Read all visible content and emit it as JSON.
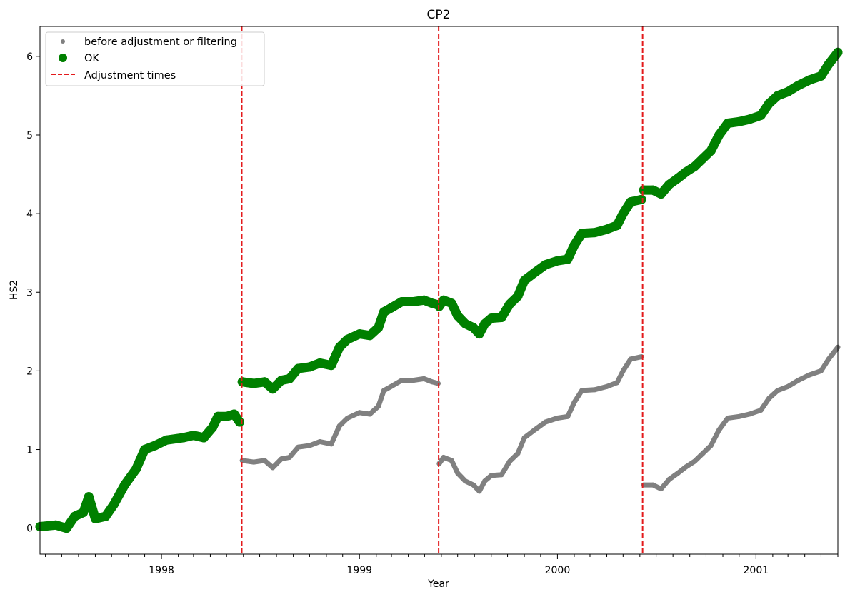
{
  "chart_data": {
    "type": "scatter",
    "title": "CP2",
    "xlabel": "Year",
    "ylabel": "HS2",
    "xlim": [
      "1997-05-22",
      "2001-06-01"
    ],
    "ylim": [
      -0.33,
      6.38
    ],
    "x_ticks": [
      "1998",
      "1999",
      "2000",
      "2001"
    ],
    "y_ticks": [
      "0",
      "1",
      "2",
      "3",
      "4",
      "5",
      "6"
    ],
    "grid": false,
    "legend": {
      "placement": "top-left",
      "entries": [
        "before adjustment or filtering",
        "OK",
        "Adjustment times"
      ]
    },
    "adjustment_times": [
      "1998-05-29",
      "1999-05-27",
      "2000-06-06"
    ],
    "series": [
      {
        "name": "before adjustment or filtering",
        "color": "#808080",
        "points": [
          [
            "1997-05-22",
            0.02
          ],
          [
            "1997-06-20",
            0.04
          ],
          [
            "1997-07-10",
            0.0
          ],
          [
            "1997-07-25",
            0.15
          ],
          [
            "1997-08-10",
            0.2
          ],
          [
            "1997-08-20",
            0.4
          ],
          [
            "1997-09-01",
            0.12
          ],
          [
            "1997-09-20",
            0.15
          ],
          [
            "1997-10-05",
            0.3
          ],
          [
            "1997-10-25",
            0.55
          ],
          [
            "1997-11-15",
            0.75
          ],
          [
            "1997-12-01",
            1.0
          ],
          [
            "1997-12-20",
            1.05
          ],
          [
            "1998-01-10",
            1.12
          ],
          [
            "1998-02-10",
            1.15
          ],
          [
            "1998-03-01",
            1.18
          ],
          [
            "1998-03-20",
            1.15
          ],
          [
            "1998-04-05",
            1.28
          ],
          [
            "1998-04-15",
            1.42
          ],
          [
            "1998-05-01",
            1.42
          ],
          [
            "1998-05-15",
            1.45
          ],
          [
            "1998-05-25",
            1.35
          ],
          [
            "1998-05-30",
            0.86
          ],
          [
            "1998-06-20",
            0.84
          ],
          [
            "1998-07-10",
            0.86
          ],
          [
            "1998-07-25",
            0.77
          ],
          [
            "1998-08-10",
            0.88
          ],
          [
            "1998-08-25",
            0.9
          ],
          [
            "1998-09-10",
            1.03
          ],
          [
            "1998-10-01",
            1.05
          ],
          [
            "1998-10-20",
            1.1
          ],
          [
            "1998-11-10",
            1.07
          ],
          [
            "1998-11-25",
            1.3
          ],
          [
            "1998-12-10",
            1.4
          ],
          [
            "1999-01-01",
            1.47
          ],
          [
            "1999-01-20",
            1.45
          ],
          [
            "1999-02-05",
            1.55
          ],
          [
            "1999-02-15",
            1.75
          ],
          [
            "1999-02-28",
            1.8
          ],
          [
            "1999-03-20",
            1.88
          ],
          [
            "1999-04-10",
            1.88
          ],
          [
            "1999-04-30",
            1.9
          ],
          [
            "1999-05-15",
            1.86
          ],
          [
            "1999-05-26",
            1.84
          ],
          [
            "1999-05-28",
            0.82
          ],
          [
            "1999-06-05",
            0.9
          ],
          [
            "1999-06-20",
            0.86
          ],
          [
            "1999-07-01",
            0.7
          ],
          [
            "1999-07-15",
            0.6
          ],
          [
            "1999-07-30",
            0.55
          ],
          [
            "1999-08-10",
            0.47
          ],
          [
            "1999-08-20",
            0.6
          ],
          [
            "1999-09-01",
            0.67
          ],
          [
            "1999-09-20",
            0.68
          ],
          [
            "1999-10-05",
            0.85
          ],
          [
            "1999-10-20",
            0.95
          ],
          [
            "1999-11-01",
            1.15
          ],
          [
            "1999-11-20",
            1.25
          ],
          [
            "1999-12-10",
            1.35
          ],
          [
            "2000-01-01",
            1.4
          ],
          [
            "2000-01-20",
            1.42
          ],
          [
            "2000-02-01",
            1.6
          ],
          [
            "2000-02-15",
            1.75
          ],
          [
            "2000-03-10",
            1.76
          ],
          [
            "2000-04-01",
            1.8
          ],
          [
            "2000-04-20",
            1.85
          ],
          [
            "2000-05-01",
            2.0
          ],
          [
            "2000-05-15",
            2.15
          ],
          [
            "2000-06-04",
            2.18
          ],
          [
            "2000-06-08",
            0.55
          ],
          [
            "2000-06-25",
            0.55
          ],
          [
            "2000-07-10",
            0.5
          ],
          [
            "2000-07-25",
            0.62
          ],
          [
            "2000-08-10",
            0.7
          ],
          [
            "2000-08-25",
            0.78
          ],
          [
            "2000-09-10",
            0.85
          ],
          [
            "2000-09-25",
            0.95
          ],
          [
            "2000-10-10",
            1.05
          ],
          [
            "2000-10-25",
            1.25
          ],
          [
            "2000-11-10",
            1.4
          ],
          [
            "2000-12-01",
            1.42
          ],
          [
            "2000-12-20",
            1.45
          ],
          [
            "2001-01-10",
            1.5
          ],
          [
            "2001-01-25",
            1.65
          ],
          [
            "2001-02-10",
            1.75
          ],
          [
            "2001-03-01",
            1.8
          ],
          [
            "2001-03-20",
            1.88
          ],
          [
            "2001-04-10",
            1.95
          ],
          [
            "2001-05-01",
            2.0
          ],
          [
            "2001-05-15",
            2.15
          ],
          [
            "2001-06-01",
            2.3
          ]
        ]
      },
      {
        "name": "OK",
        "color": "#008000",
        "points": [
          [
            "1997-05-22",
            0.02
          ],
          [
            "1997-06-20",
            0.04
          ],
          [
            "1997-07-10",
            0.0
          ],
          [
            "1997-07-25",
            0.15
          ],
          [
            "1997-08-10",
            0.2
          ],
          [
            "1997-08-20",
            0.4
          ],
          [
            "1997-09-01",
            0.12
          ],
          [
            "1997-09-20",
            0.15
          ],
          [
            "1997-10-05",
            0.3
          ],
          [
            "1997-10-25",
            0.55
          ],
          [
            "1997-11-15",
            0.75
          ],
          [
            "1997-12-01",
            1.0
          ],
          [
            "1997-12-20",
            1.05
          ],
          [
            "1998-01-10",
            1.12
          ],
          [
            "1998-02-10",
            1.15
          ],
          [
            "1998-03-01",
            1.18
          ],
          [
            "1998-03-20",
            1.15
          ],
          [
            "1998-04-05",
            1.28
          ],
          [
            "1998-04-15",
            1.42
          ],
          [
            "1998-05-01",
            1.42
          ],
          [
            "1998-05-15",
            1.45
          ],
          [
            "1998-05-25",
            1.35
          ],
          [
            "1998-05-30",
            1.86
          ],
          [
            "1998-06-20",
            1.84
          ],
          [
            "1998-07-10",
            1.86
          ],
          [
            "1998-07-25",
            1.77
          ],
          [
            "1998-08-10",
            1.88
          ],
          [
            "1998-08-25",
            1.9
          ],
          [
            "1998-09-10",
            2.03
          ],
          [
            "1998-10-01",
            2.05
          ],
          [
            "1998-10-20",
            2.1
          ],
          [
            "1998-11-10",
            2.07
          ],
          [
            "1998-11-25",
            2.3
          ],
          [
            "1998-12-10",
            2.4
          ],
          [
            "1999-01-01",
            2.47
          ],
          [
            "1999-01-20",
            2.45
          ],
          [
            "1999-02-05",
            2.55
          ],
          [
            "1999-02-15",
            2.75
          ],
          [
            "1999-02-28",
            2.8
          ],
          [
            "1999-03-20",
            2.88
          ],
          [
            "1999-04-10",
            2.88
          ],
          [
            "1999-04-30",
            2.9
          ],
          [
            "1999-05-15",
            2.86
          ],
          [
            "1999-05-26",
            2.84
          ],
          [
            "1999-05-28",
            2.82
          ],
          [
            "1999-06-05",
            2.9
          ],
          [
            "1999-06-20",
            2.86
          ],
          [
            "1999-07-01",
            2.7
          ],
          [
            "1999-07-15",
            2.6
          ],
          [
            "1999-07-30",
            2.55
          ],
          [
            "1999-08-10",
            2.47
          ],
          [
            "1999-08-20",
            2.6
          ],
          [
            "1999-09-01",
            2.67
          ],
          [
            "1999-09-20",
            2.68
          ],
          [
            "1999-10-05",
            2.85
          ],
          [
            "1999-10-20",
            2.95
          ],
          [
            "1999-11-01",
            3.15
          ],
          [
            "1999-11-20",
            3.25
          ],
          [
            "1999-12-10",
            3.35
          ],
          [
            "2000-01-01",
            3.4
          ],
          [
            "2000-01-20",
            3.42
          ],
          [
            "2000-02-01",
            3.6
          ],
          [
            "2000-02-15",
            3.75
          ],
          [
            "2000-03-10",
            3.76
          ],
          [
            "2000-04-01",
            3.8
          ],
          [
            "2000-04-20",
            3.85
          ],
          [
            "2000-05-01",
            4.0
          ],
          [
            "2000-05-15",
            4.15
          ],
          [
            "2000-06-04",
            4.18
          ],
          [
            "2000-06-08",
            4.3
          ],
          [
            "2000-06-25",
            4.3
          ],
          [
            "2000-07-10",
            4.25
          ],
          [
            "2000-07-25",
            4.37
          ],
          [
            "2000-08-10",
            4.45
          ],
          [
            "2000-08-25",
            4.53
          ],
          [
            "2000-09-10",
            4.6
          ],
          [
            "2000-09-25",
            4.7
          ],
          [
            "2000-10-10",
            4.8
          ],
          [
            "2000-10-25",
            5.0
          ],
          [
            "2000-11-10",
            5.15
          ],
          [
            "2000-12-01",
            5.17
          ],
          [
            "2000-12-20",
            5.2
          ],
          [
            "2001-01-10",
            5.25
          ],
          [
            "2001-01-25",
            5.4
          ],
          [
            "2001-02-10",
            5.5
          ],
          [
            "2001-03-01",
            5.55
          ],
          [
            "2001-03-20",
            5.63
          ],
          [
            "2001-04-10",
            5.7
          ],
          [
            "2001-05-01",
            5.75
          ],
          [
            "2001-05-15",
            5.9
          ],
          [
            "2001-06-01",
            6.05
          ]
        ]
      }
    ]
  }
}
